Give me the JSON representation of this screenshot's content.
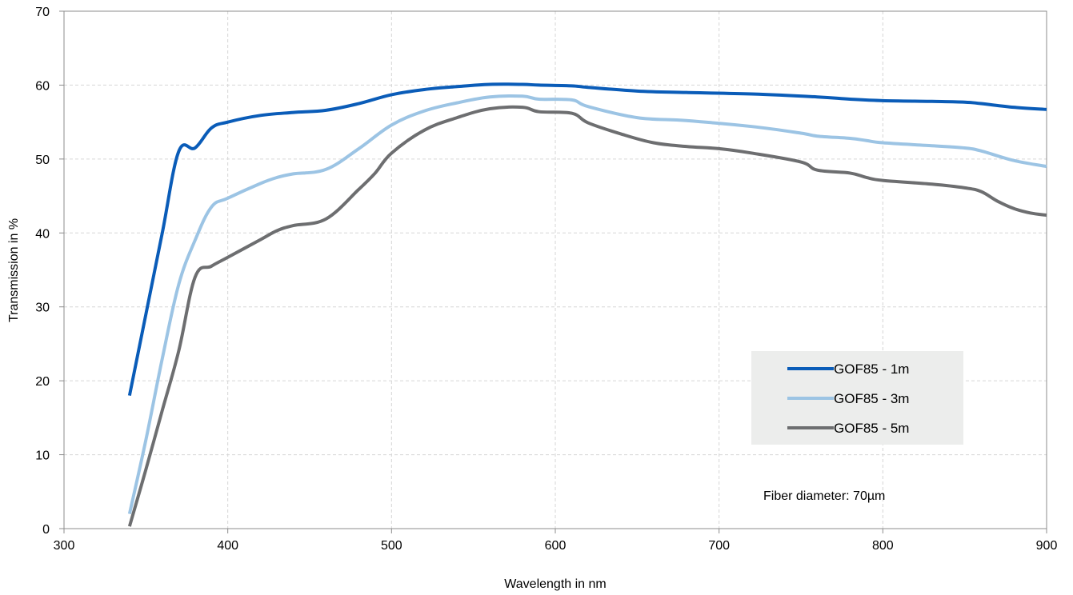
{
  "chart_data": {
    "type": "line",
    "title": "",
    "xlabel": "Wavelength in nm",
    "ylabel": "Transmission in %",
    "xlim": [
      300,
      900
    ],
    "ylim": [
      0,
      70
    ],
    "xticks": [
      300,
      400,
      500,
      600,
      700,
      800,
      900
    ],
    "yticks": [
      0,
      10,
      20,
      30,
      40,
      50,
      60,
      70
    ],
    "grid": true,
    "legend_position": "right",
    "annotation": "Fiber diameter: 70µm",
    "series": [
      {
        "name": "GOF85 - 1m",
        "color": "#0a5cb8",
        "x": [
          340,
          350,
          360,
          370,
          380,
          390,
          400,
          420,
          440,
          460,
          480,
          500,
          520,
          540,
          560,
          580,
          590,
          610,
          620,
          650,
          680,
          720,
          760,
          780,
          800,
          830,
          850,
          860,
          880,
          900
        ],
        "y": [
          18,
          29,
          40,
          51,
          51.5,
          54.2,
          55,
          55.9,
          56.3,
          56.6,
          57.5,
          58.7,
          59.4,
          59.8,
          60.1,
          60.1,
          60,
          59.9,
          59.7,
          59.2,
          59,
          58.8,
          58.4,
          58.1,
          57.9,
          57.8,
          57.7,
          57.5,
          57,
          56.7
        ]
      },
      {
        "name": "GOF85 - 3m",
        "color": "#9cc4e4",
        "x": [
          340,
          350,
          360,
          370,
          380,
          390,
          400,
          420,
          430,
          440,
          460,
          480,
          500,
          520,
          540,
          560,
          580,
          590,
          610,
          620,
          650,
          680,
          720,
          750,
          760,
          780,
          790,
          800,
          830,
          850,
          860,
          880,
          900
        ],
        "y": [
          2,
          12,
          23,
          33,
          39,
          43.5,
          44.7,
          46.7,
          47.5,
          48,
          48.6,
          51.4,
          54.6,
          56.5,
          57.6,
          58.4,
          58.5,
          58.1,
          58,
          57.1,
          55.6,
          55.2,
          54.4,
          53.5,
          53.1,
          52.8,
          52.5,
          52.2,
          51.8,
          51.5,
          51.1,
          49.8,
          49
        ]
      },
      {
        "name": "GOF85 - 5m",
        "color": "#6d6e70",
        "x": [
          340,
          350,
          360,
          370,
          380,
          390,
          400,
          420,
          430,
          440,
          460,
          480,
          490,
          500,
          520,
          540,
          560,
          580,
          590,
          610,
          620,
          640,
          660,
          680,
          700,
          720,
          750,
          760,
          780,
          790,
          800,
          830,
          850,
          860,
          870,
          880,
          890,
          900
        ],
        "y": [
          0.3,
          8,
          16,
          24,
          34,
          35.5,
          36.7,
          39.1,
          40.3,
          41,
          41.9,
          45.9,
          48.1,
          50.8,
          53.9,
          55.6,
          56.8,
          57,
          56.4,
          56.2,
          54.9,
          53.4,
          52.2,
          51.7,
          51.4,
          50.8,
          49.6,
          48.5,
          48.1,
          47.5,
          47.1,
          46.6,
          46.1,
          45.6,
          44.3,
          43.3,
          42.7,
          42.4
        ]
      }
    ]
  }
}
